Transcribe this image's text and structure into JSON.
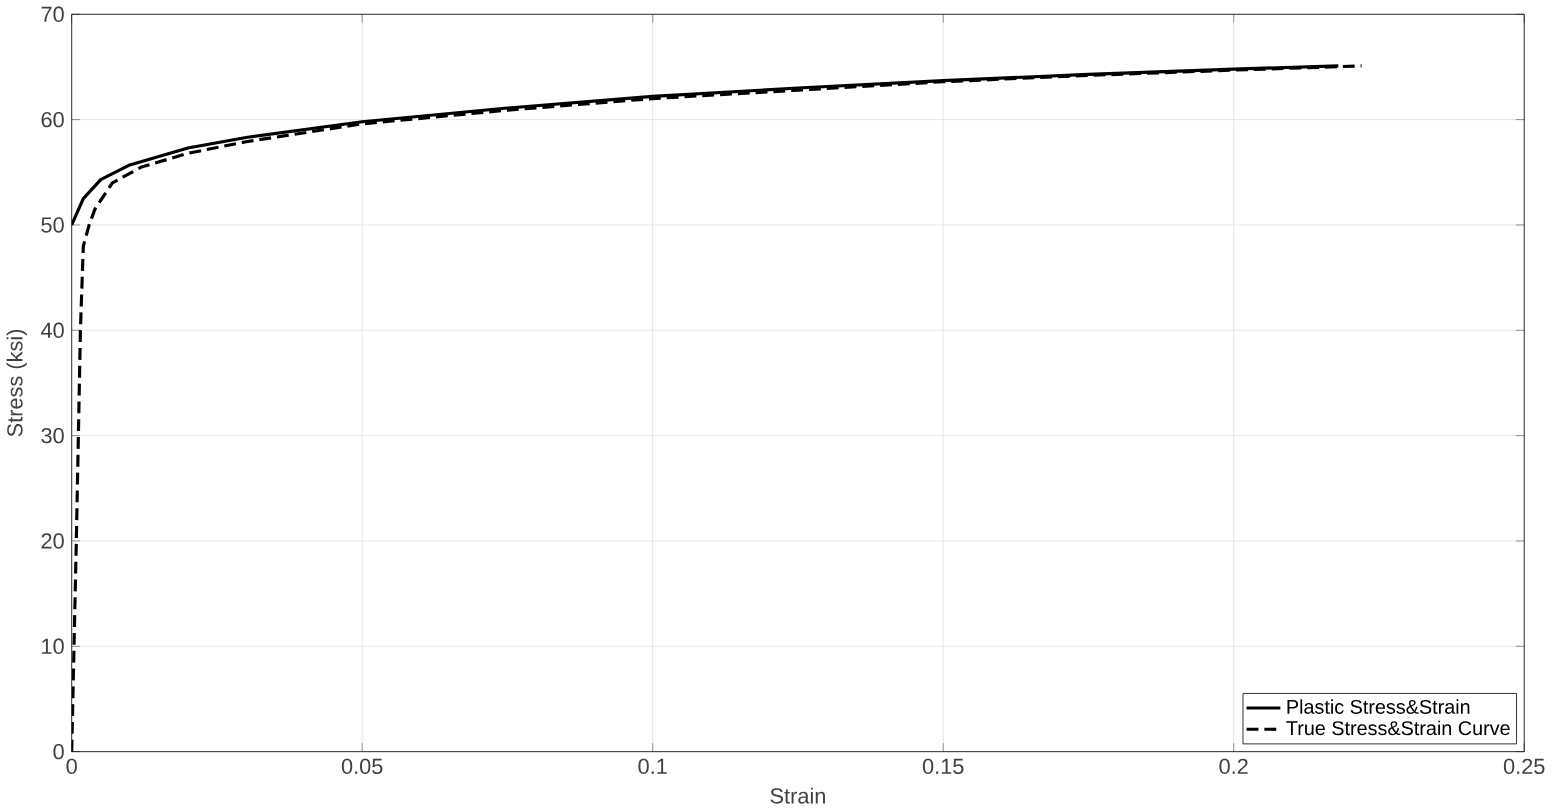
{
  "chart_data": {
    "type": "line",
    "xlabel": "Strain",
    "ylabel": "Stress (ksi)",
    "xlim": [
      0,
      0.25
    ],
    "ylim": [
      0,
      70
    ],
    "xticks": [
      0,
      0.05,
      0.1,
      0.15,
      0.2,
      0.25
    ],
    "yticks": [
      0,
      10,
      20,
      30,
      40,
      50,
      60,
      70
    ],
    "grid": true,
    "legend": "bottom right",
    "series": [
      {
        "name": "Plastic Stress&Strain",
        "color": "#000000",
        "line_style": "solid",
        "x": [
          0,
          0.002,
          0.005,
          0.01,
          0.02,
          0.03,
          0.05,
          0.075,
          0.1,
          0.125,
          0.15,
          0.175,
          0.2,
          0.218
        ],
        "values": [
          50,
          52.5,
          54.3,
          55.7,
          57.3,
          58.3,
          59.8,
          61.1,
          62.2,
          63,
          63.7,
          64.3,
          64.8,
          65.1
        ]
      },
      {
        "name": "True Stress&Strain Curve",
        "color": "#000000",
        "line_style": "dashed",
        "x": [
          0,
          0.0008,
          0.0015,
          0.002,
          0.003,
          0.004,
          0.007,
          0.012,
          0.02,
          0.03,
          0.05,
          0.075,
          0.1,
          0.125,
          0.15,
          0.175,
          0.2,
          0.222
        ],
        "values": [
          0,
          20,
          40,
          48,
          50,
          51.5,
          54,
          55.5,
          56.8,
          57.9,
          59.6,
          60.9,
          62,
          62.8,
          63.6,
          64.2,
          64.7,
          65.1
        ]
      }
    ]
  }
}
